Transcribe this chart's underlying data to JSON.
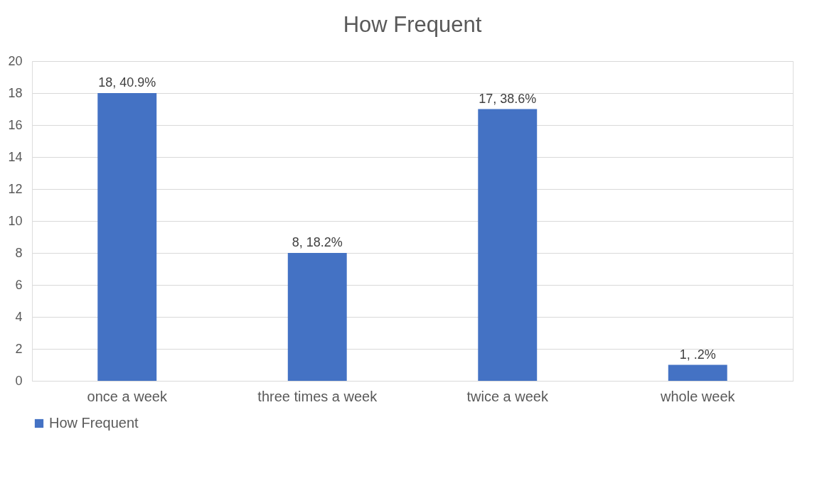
{
  "chart_data": {
    "type": "bar",
    "title": "How Frequent",
    "categories": [
      "once a week",
      "three times a week",
      "twice a week",
      "whole week"
    ],
    "series": [
      {
        "name": "How Frequent",
        "color": "#4472c4",
        "values": [
          18,
          8,
          17,
          1
        ],
        "value_labels": [
          "18, 40.9%",
          "8, 18.2%",
          "17, 38.6%",
          "1, .2%"
        ]
      }
    ],
    "ylim": [
      0,
      20
    ],
    "yticks": [
      0,
      2,
      4,
      6,
      8,
      10,
      12,
      14,
      16,
      18,
      20
    ],
    "grid": "y",
    "legend": "bottom"
  }
}
